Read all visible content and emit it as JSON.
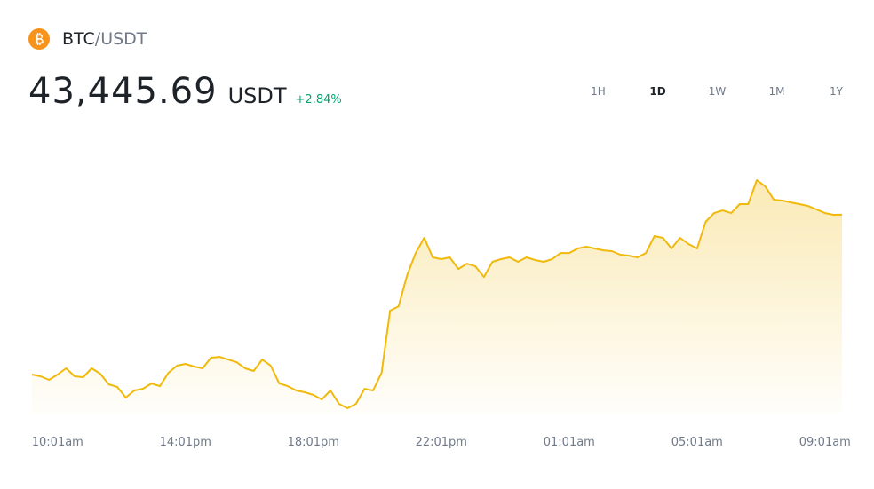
{
  "header": {
    "base": "BTC",
    "quote": "/USDT",
    "price": "43,445.69",
    "unit": "USDT",
    "change": "+2.84%",
    "timeframes": [
      "1H",
      "1D",
      "1W",
      "1M",
      "1Y"
    ],
    "active_timeframe": 1
  },
  "chart_data": {
    "type": "line",
    "color": "#f0b90b",
    "series": [
      {
        "values": [
          42245,
          42232,
          42205,
          42245,
          42292,
          42232,
          42225,
          42292,
          42252,
          42172,
          42152,
          42072,
          42125,
          42138,
          42178,
          42158,
          42258,
          42312,
          42325,
          42305,
          42292,
          42372,
          42378,
          42358,
          42338,
          42292,
          42272,
          42358,
          42312,
          42178,
          42158,
          42125,
          42112,
          42092,
          42058,
          42125,
          42025,
          41992,
          42025,
          42138,
          42125,
          42258,
          42725,
          42758,
          42992,
          43158,
          43272,
          43125,
          43112,
          43125,
          43038,
          43078,
          43058,
          42978,
          43092,
          43112,
          43125,
          43092,
          43125,
          43105,
          43092,
          43112,
          43158,
          43158,
          43192,
          43205,
          43192,
          43178,
          43172,
          43145,
          43138,
          43125,
          43158,
          43285,
          43272,
          43192,
          43272,
          43225,
          43192,
          43392,
          43458,
          43478,
          43458,
          43525,
          43525,
          43705,
          43658,
          43558,
          43552,
          43538,
          43525,
          43512,
          43485,
          43458,
          43445,
          43445.69
        ]
      }
    ],
    "xticks": [
      {
        "value": 3,
        "label": "10:01am"
      },
      {
        "value": 18,
        "label": "14:01pm"
      },
      {
        "value": 33,
        "label": "18:01pm"
      },
      {
        "value": 48,
        "label": "22:01pm"
      },
      {
        "value": 63,
        "label": "01:01am"
      },
      {
        "value": 78,
        "label": "05:01am"
      },
      {
        "value": 93,
        "label": "09:01am"
      }
    ]
  }
}
